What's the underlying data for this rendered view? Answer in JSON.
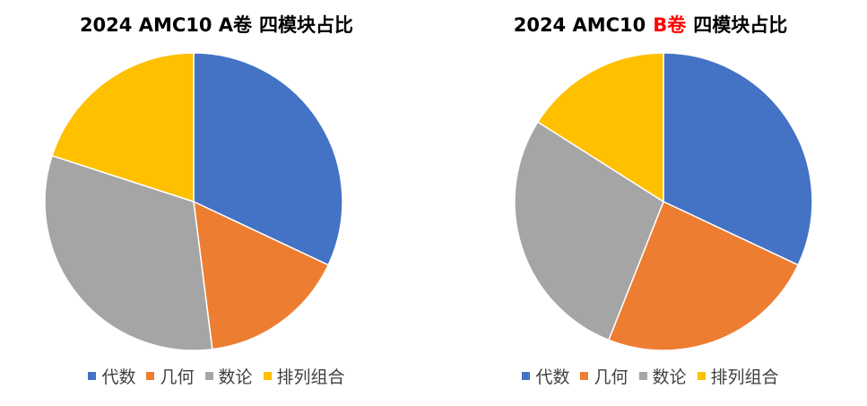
{
  "chart_data": [
    {
      "type": "pie",
      "title_main": "2024 AMC10 A卷",
      "title_tail": "四模块占比",
      "categories": [
        "代数",
        "几何",
        "数论",
        "排列组合"
      ],
      "values": [
        32,
        16,
        32,
        20
      ],
      "colors": [
        "#4472C4",
        "#ED7D31",
        "#A5A5A5",
        "#FFC000"
      ],
      "legend_position": "bottom"
    },
    {
      "type": "pie",
      "title_pre": "2024 AMC10",
      "title_highlight": "B卷",
      "title_tail": "四模块占比",
      "highlight_color": "#FF0000",
      "categories": [
        "代数",
        "几何",
        "数论",
        "排列组合"
      ],
      "values": [
        32,
        24,
        28,
        16
      ],
      "colors": [
        "#4472C4",
        "#ED7D31",
        "#A5A5A5",
        "#FFC000"
      ],
      "legend_position": "bottom"
    }
  ]
}
